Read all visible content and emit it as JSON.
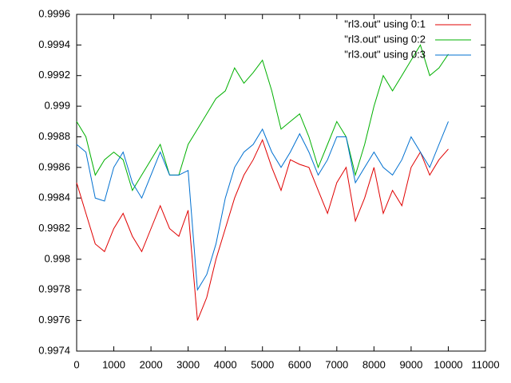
{
  "chart_data": {
    "type": "line",
    "x": [
      0,
      250,
      500,
      750,
      1000,
      1250,
      1500,
      1750,
      2000,
      2250,
      2500,
      2750,
      3000,
      3250,
      3500,
      3750,
      4000,
      4250,
      4500,
      4750,
      5000,
      5250,
      5500,
      5750,
      6000,
      6250,
      6500,
      6750,
      7000,
      7250,
      7500,
      7750,
      8000,
      8250,
      8500,
      8750,
      9000,
      9250,
      9500,
      9750,
      10000
    ],
    "series": [
      {
        "name": "\"rl3.out\" using 0:1",
        "color": "#e00000",
        "values": [
          0.9985,
          0.9983,
          0.9981,
          0.99805,
          0.9982,
          0.9983,
          0.99815,
          0.99805,
          0.9982,
          0.99835,
          0.9982,
          0.99815,
          0.99832,
          0.9976,
          0.99775,
          0.998,
          0.9982,
          0.9984,
          0.99855,
          0.99865,
          0.99878,
          0.9986,
          0.99845,
          0.99865,
          0.99862,
          0.9986,
          0.99845,
          0.9983,
          0.9985,
          0.9986,
          0.99825,
          0.9984,
          0.9986,
          0.9983,
          0.99845,
          0.99835,
          0.9986,
          0.9987,
          0.99855,
          0.99865,
          0.99872
        ]
      },
      {
        "name": "\"rl3.out\" using 0:2",
        "color": "#00b000",
        "values": [
          0.9989,
          0.9988,
          0.99855,
          0.99865,
          0.9987,
          0.99865,
          0.99845,
          0.99855,
          0.99865,
          0.99875,
          0.99855,
          0.99855,
          0.99875,
          0.99885,
          0.99895,
          0.99905,
          0.9991,
          0.99925,
          0.99915,
          0.99922,
          0.9993,
          0.9991,
          0.99885,
          0.9989,
          0.99895,
          0.9988,
          0.9986,
          0.99875,
          0.9989,
          0.9988,
          0.99855,
          0.99875,
          0.999,
          0.9992,
          0.9991,
          0.9992,
          0.9993,
          0.9994,
          0.9992,
          0.99925,
          0.99934
        ]
      },
      {
        "name": "\"rl3.out\" using 0:3",
        "color": "#0070d0",
        "values": [
          0.99875,
          0.9987,
          0.9984,
          0.99838,
          0.9986,
          0.9987,
          0.9985,
          0.9984,
          0.99855,
          0.9987,
          0.99855,
          0.99855,
          0.99858,
          0.9978,
          0.9979,
          0.9981,
          0.9984,
          0.9986,
          0.9987,
          0.99875,
          0.99885,
          0.9987,
          0.9986,
          0.9987,
          0.99882,
          0.9987,
          0.99855,
          0.99865,
          0.9988,
          0.9988,
          0.9985,
          0.9986,
          0.9987,
          0.9986,
          0.99855,
          0.99865,
          0.9988,
          0.9987,
          0.9986,
          0.99875,
          0.9989
        ]
      }
    ],
    "xlim": [
      0,
      11000
    ],
    "xticks": [
      0,
      1000,
      2000,
      3000,
      4000,
      5000,
      6000,
      7000,
      8000,
      9000,
      10000,
      11000
    ],
    "ylim": [
      0.9974,
      0.9996
    ],
    "yticks": [
      0.9974,
      0.9976,
      0.9978,
      0.998,
      0.9982,
      0.9984,
      0.9986,
      0.9988,
      0.999,
      0.9992,
      0.9994,
      0.9996
    ],
    "grid": false,
    "legend": "top-right"
  }
}
